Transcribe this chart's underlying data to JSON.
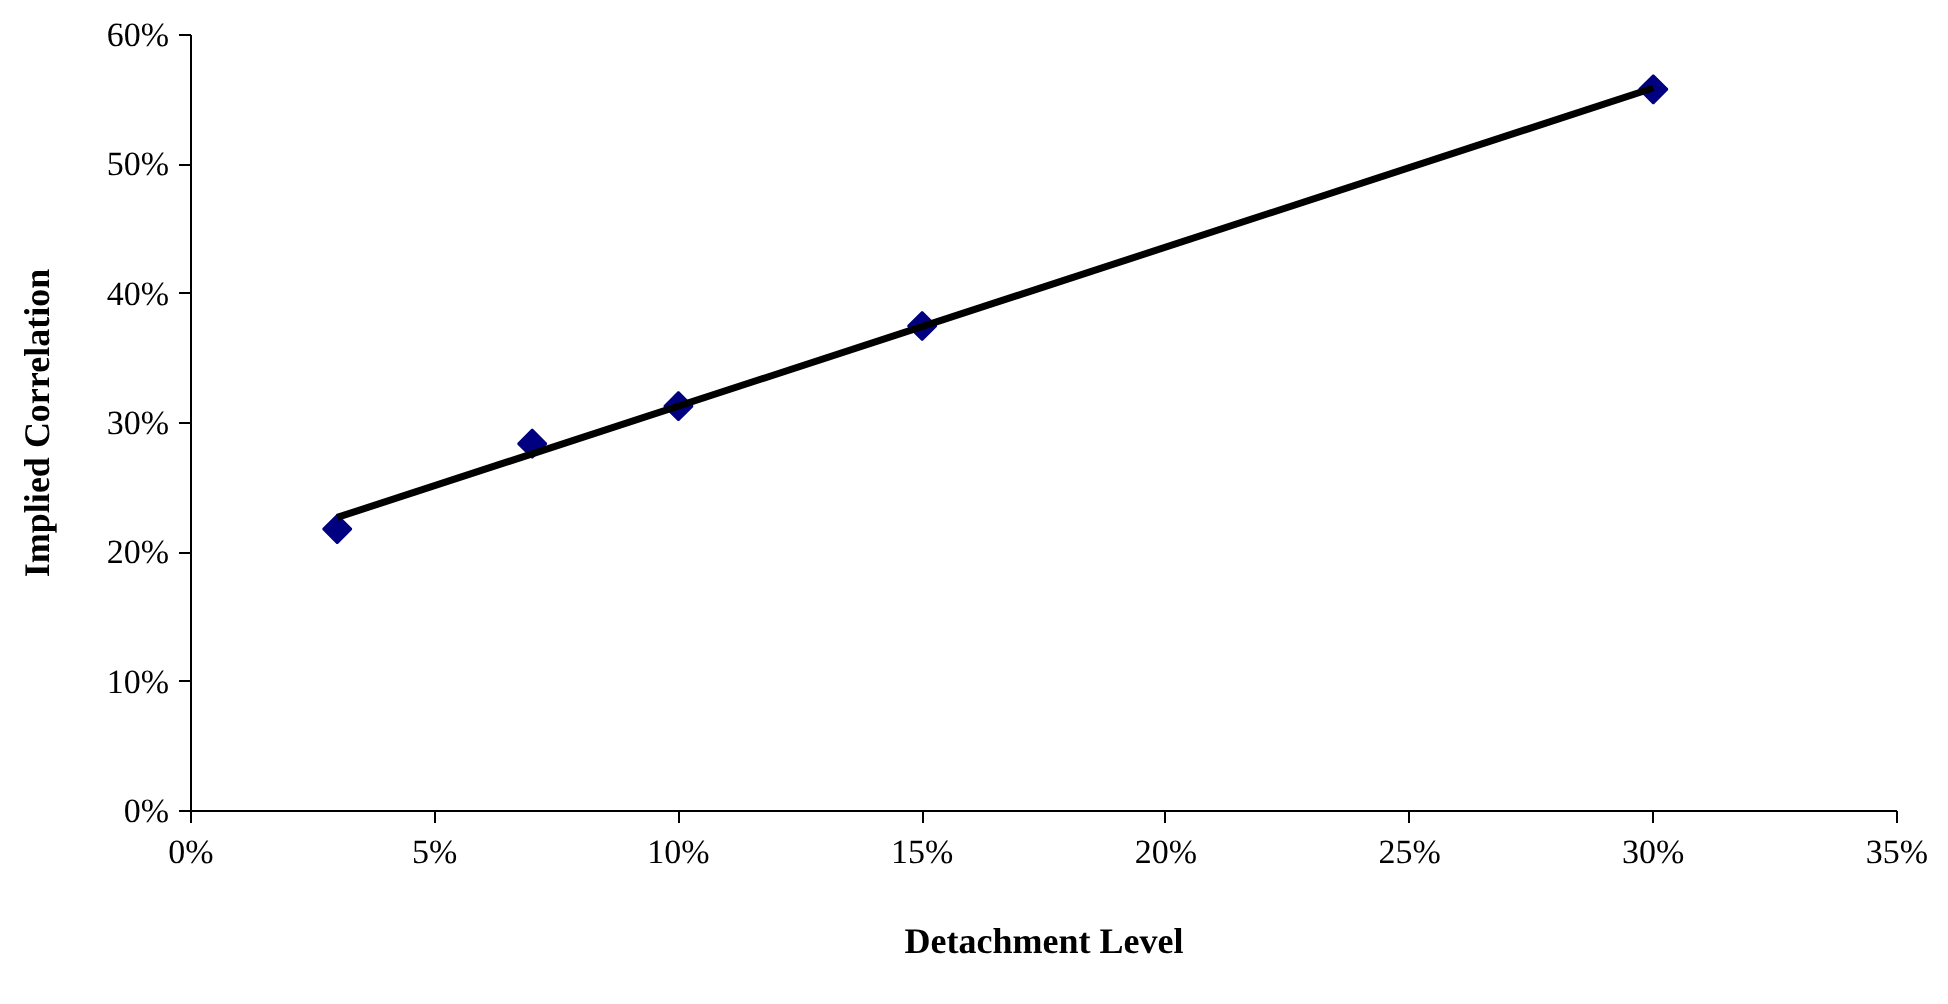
{
  "chart_data": {
    "type": "scatter",
    "xlabel": "Detachment Level",
    "ylabel": "Implied Correlation",
    "marker": "diamond",
    "grid": false,
    "series": [
      {
        "color": "#000080",
        "x": [
          3,
          7,
          10,
          15,
          30
        ],
        "values": [
          21.8,
          28.4,
          31.3,
          37.5,
          55.8
        ]
      },
      {
        "type": "line",
        "color": "#000000",
        "x": [
          3,
          30
        ],
        "values": [
          22.7,
          55.9
        ],
        "line_style": "solid",
        "marker": "none"
      }
    ],
    "xlim": [
      0,
      35
    ],
    "xticks": [
      {
        "value": 0,
        "label": "0%"
      },
      {
        "value": 5,
        "label": "5%"
      },
      {
        "value": 10,
        "label": "10%"
      },
      {
        "value": 15,
        "label": "15%"
      },
      {
        "value": 20,
        "label": "20%"
      },
      {
        "value": 25,
        "label": "25%"
      },
      {
        "value": 30,
        "label": "30%"
      },
      {
        "value": 35,
        "label": "35%"
      }
    ],
    "ylim": [
      0,
      60
    ],
    "yticks": [
      {
        "value": 0,
        "label": "0%"
      },
      {
        "value": 10,
        "label": "10%"
      },
      {
        "value": 20,
        "label": "20%"
      },
      {
        "value": 30,
        "label": "30%"
      },
      {
        "value": 40,
        "label": "40%"
      },
      {
        "value": 50,
        "label": "50%"
      },
      {
        "value": 60,
        "label": "60%"
      }
    ]
  }
}
